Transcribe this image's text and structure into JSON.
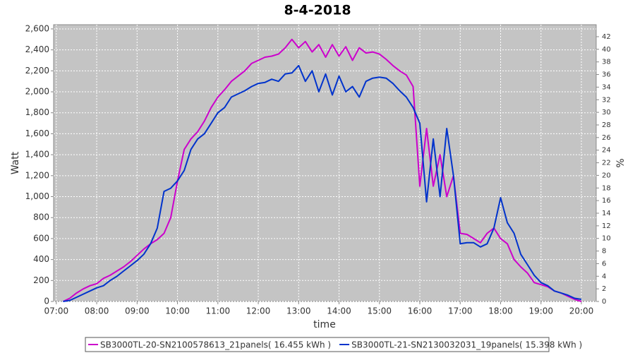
{
  "chart_data": {
    "type": "line",
    "title": "8-4-2018",
    "x_label": "time",
    "y_label": "Watt",
    "y2_label": "%",
    "xlim": [
      416,
      1222
    ],
    "xticks": [
      {
        "value": 420,
        "label": "07:00"
      },
      {
        "value": 480,
        "label": "08:00"
      },
      {
        "value": 540,
        "label": "09:00"
      },
      {
        "value": 600,
        "label": "10:00"
      },
      {
        "value": 660,
        "label": "11:00"
      },
      {
        "value": 720,
        "label": "12:00"
      },
      {
        "value": 780,
        "label": "13:00"
      },
      {
        "value": 840,
        "label": "14:00"
      },
      {
        "value": 900,
        "label": "15:00"
      },
      {
        "value": 960,
        "label": "16:00"
      },
      {
        "value": 1020,
        "label": "17:00"
      },
      {
        "value": 1080,
        "label": "18:00"
      },
      {
        "value": 1140,
        "label": "19:00"
      },
      {
        "value": 1200,
        "label": "20:00"
      }
    ],
    "ylim": [
      0,
      2640
    ],
    "yticks": [
      0,
      200,
      400,
      600,
      800,
      {
        "value": 1000,
        "label": "1,000"
      },
      {
        "value": 1200,
        "label": "1,200"
      },
      {
        "value": 1400,
        "label": "1,400"
      },
      {
        "value": 1600,
        "label": "1,600"
      },
      {
        "value": 1800,
        "label": "1,800"
      },
      {
        "value": 2000,
        "label": "2,000"
      },
      {
        "value": 2200,
        "label": "2,200"
      },
      {
        "value": 2400,
        "label": "2,400"
      },
      {
        "value": 2600,
        "label": "2,600"
      }
    ],
    "y2lim": [
      0,
      43.9
    ],
    "y2ticks": [
      0,
      2,
      4,
      6,
      8,
      10,
      12,
      14,
      16,
      18,
      20,
      22,
      24,
      26,
      28,
      30,
      32,
      34,
      36,
      38,
      40,
      42
    ],
    "grid": true,
    "x": [
      430,
      440,
      450,
      460,
      470,
      480,
      490,
      500,
      510,
      520,
      530,
      540,
      550,
      560,
      570,
      580,
      590,
      600,
      610,
      620,
      630,
      640,
      650,
      660,
      670,
      680,
      690,
      700,
      710,
      720,
      730,
      740,
      750,
      760,
      770,
      780,
      790,
      800,
      810,
      820,
      830,
      840,
      850,
      860,
      870,
      880,
      890,
      900,
      910,
      920,
      930,
      940,
      950,
      960,
      970,
      980,
      990,
      1000,
      1010,
      1020,
      1030,
      1040,
      1050,
      1060,
      1070,
      1080,
      1090,
      1100,
      1110,
      1120,
      1130,
      1140,
      1150,
      1160,
      1170,
      1180,
      1190,
      1200
    ],
    "series": [
      {
        "name": "SB3000TL-20-SN2100578613_21panels( 16.455 kWh )",
        "color": "#cc00cc",
        "values": [
          0,
          30,
          80,
          120,
          150,
          170,
          220,
          250,
          290,
          330,
          380,
          440,
          500,
          550,
          590,
          650,
          800,
          1150,
          1450,
          1550,
          1620,
          1720,
          1850,
          1950,
          2020,
          2100,
          2150,
          2200,
          2270,
          2300,
          2330,
          2340,
          2360,
          2420,
          2500,
          2420,
          2480,
          2380,
          2450,
          2330,
          2450,
          2340,
          2430,
          2300,
          2420,
          2370,
          2380,
          2360,
          2310,
          2250,
          2200,
          2160,
          2050,
          1100,
          1650,
          1100,
          1400,
          1000,
          1200,
          650,
          640,
          600,
          560,
          650,
          700,
          600,
          550,
          400,
          330,
          270,
          180,
          160,
          140,
          100,
          80,
          50,
          20,
          0
        ]
      },
      {
        "name": "SB3000TL-21-SN2130032031_19panels( 15.398 kWh )",
        "color": "#0033cc",
        "values": [
          0,
          10,
          40,
          70,
          100,
          130,
          150,
          200,
          240,
          290,
          340,
          390,
          450,
          550,
          700,
          1050,
          1080,
          1150,
          1250,
          1450,
          1550,
          1600,
          1700,
          1800,
          1850,
          1950,
          1980,
          2010,
          2050,
          2080,
          2090,
          2120,
          2100,
          2170,
          2180,
          2250,
          2100,
          2200,
          2000,
          2170,
          1970,
          2150,
          2000,
          2050,
          1950,
          2100,
          2130,
          2140,
          2130,
          2080,
          2010,
          1950,
          1850,
          1700,
          950,
          1550,
          1000,
          1650,
          1200,
          550,
          560,
          560,
          520,
          550,
          700,
          990,
          750,
          650,
          450,
          350,
          250,
          180,
          150,
          100,
          80,
          60,
          30,
          20
        ]
      }
    ]
  }
}
